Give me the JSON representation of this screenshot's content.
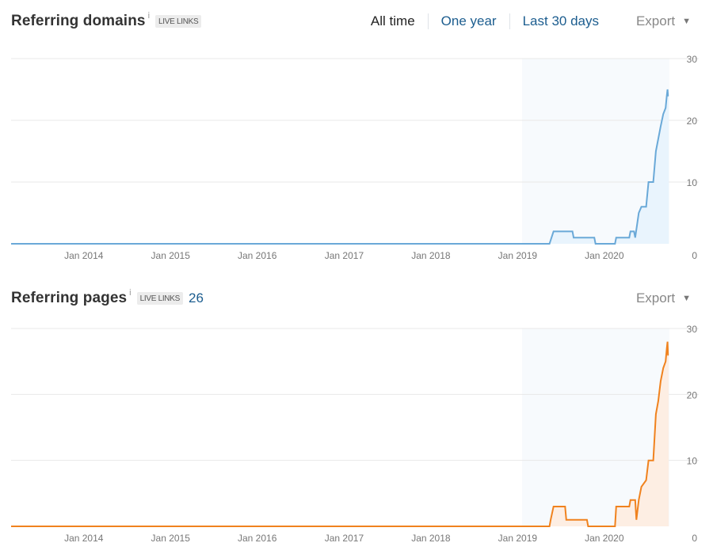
{
  "domains_panel": {
    "title": "Referring domains",
    "info": "i",
    "badge": "LIVE LINKS",
    "ranges": [
      "All time",
      "One year",
      "Last 30 days"
    ],
    "active_range": "All time",
    "export_label": "Export"
  },
  "pages_panel": {
    "title": "Referring pages",
    "info": "i",
    "badge": "LIVE LINKS",
    "count": "26",
    "export_label": "Export"
  },
  "colors": {
    "domains_line": "#6aa9d8",
    "domains_fill": "#e9f4fd",
    "pages_line": "#f0821e",
    "pages_fill": "#fdeee3",
    "grid": "#e8e8e8"
  },
  "icons": {
    "export_caret": "triangle-down-icon"
  },
  "chart_data": [
    {
      "type": "area",
      "title": "Referring domains",
      "xlabels": [
        "Jan 2014",
        "Jan 2015",
        "Jan 2016",
        "Jan 2017",
        "Jan 2018",
        "Jan 2019",
        "Jan 2020"
      ],
      "yticks": [
        0,
        10,
        20,
        30
      ],
      "ylim": [
        0,
        30
      ],
      "xrange": [
        "2013-03-01",
        "2020-10-01"
      ],
      "series": [
        {
          "points": [
            [
              "2013-03-01",
              0
            ],
            [
              "2019-05-15",
              0
            ],
            [
              "2019-06-01",
              2
            ],
            [
              "2019-08-20",
              2
            ],
            [
              "2019-08-25",
              1
            ],
            [
              "2019-11-20",
              1
            ],
            [
              "2019-11-25",
              0
            ],
            [
              "2020-02-15",
              0
            ],
            [
              "2020-02-20",
              1
            ],
            [
              "2020-04-15",
              1
            ],
            [
              "2020-04-20",
              2
            ],
            [
              "2020-05-05",
              2
            ],
            [
              "2020-05-10",
              1
            ],
            [
              "2020-05-25",
              5
            ],
            [
              "2020-06-05",
              6
            ],
            [
              "2020-06-25",
              6
            ],
            [
              "2020-07-05",
              10
            ],
            [
              "2020-07-25",
              10
            ],
            [
              "2020-08-05",
              15
            ],
            [
              "2020-08-15",
              17
            ],
            [
              "2020-08-25",
              19
            ],
            [
              "2020-09-05",
              21
            ],
            [
              "2020-09-15",
              22
            ],
            [
              "2020-09-20",
              24
            ],
            [
              "2020-09-23",
              25
            ],
            [
              "2020-09-25",
              24
            ],
            [
              "2020-09-28",
              24
            ]
          ]
        }
      ]
    },
    {
      "type": "area",
      "title": "Referring pages",
      "xlabels": [
        "Jan 2014",
        "Jan 2015",
        "Jan 2016",
        "Jan 2017",
        "Jan 2018",
        "Jan 2019",
        "Jan 2020"
      ],
      "yticks": [
        0,
        10,
        20,
        30
      ],
      "ylim": [
        0,
        30
      ],
      "xrange": [
        "2013-03-01",
        "2020-10-01"
      ],
      "series": [
        {
          "points": [
            [
              "2013-03-01",
              0
            ],
            [
              "2019-05-15",
              0
            ],
            [
              "2019-05-20",
              1
            ],
            [
              "2019-06-01",
              3
            ],
            [
              "2019-07-20",
              3
            ],
            [
              "2019-07-25",
              1
            ],
            [
              "2019-10-20",
              1
            ],
            [
              "2019-10-25",
              0
            ],
            [
              "2020-02-15",
              0
            ],
            [
              "2020-02-20",
              3
            ],
            [
              "2020-04-15",
              3
            ],
            [
              "2020-04-20",
              4
            ],
            [
              "2020-05-10",
              4
            ],
            [
              "2020-05-15",
              1
            ],
            [
              "2020-05-25",
              4
            ],
            [
              "2020-06-05",
              6
            ],
            [
              "2020-06-25",
              7
            ],
            [
              "2020-07-05",
              10
            ],
            [
              "2020-07-25",
              10
            ],
            [
              "2020-08-05",
              17
            ],
            [
              "2020-08-15",
              19
            ],
            [
              "2020-08-25",
              22
            ],
            [
              "2020-09-05",
              24
            ],
            [
              "2020-09-15",
              25
            ],
            [
              "2020-09-20",
              27
            ],
            [
              "2020-09-23",
              28
            ],
            [
              "2020-09-25",
              26
            ],
            [
              "2020-09-28",
              26
            ]
          ]
        }
      ]
    }
  ]
}
